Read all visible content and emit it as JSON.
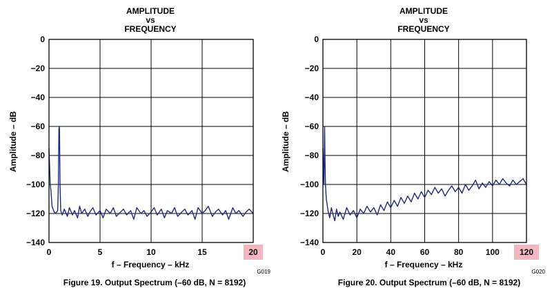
{
  "chart_data": [
    {
      "type": "line",
      "title": [
        "AMPLITUDE",
        "vs",
        "FREQUENCY"
      ],
      "xlabel": "f – Frequency – kHz",
      "ylabel": "Amplitude – dB",
      "xlim": [
        0,
        20
      ],
      "ylim": [
        -140,
        0
      ],
      "xticks": [
        0,
        5,
        10,
        15,
        20
      ],
      "xtick_labels": [
        "0",
        "5",
        "10",
        "15",
        "20"
      ],
      "yticks": [
        0,
        -20,
        -40,
        -60,
        -80,
        -100,
        -120,
        -140
      ],
      "ytick_labels": [
        "0",
        "−20",
        "−40",
        "−60",
        "−80",
        "−100",
        "−120",
        "−140"
      ],
      "highlighted_tick": "20",
      "grid": true,
      "code": "G019",
      "caption": "Figure 19. Output Spectrum (–60 dB, N = 8192)",
      "series": [
        {
          "x": [
            0,
            0.05,
            0.12,
            0.2,
            0.3,
            0.45,
            0.6,
            0.75,
            0.85,
            0.92,
            0.97,
            1.0,
            1.03,
            1.08,
            1.15,
            1.3,
            1.5,
            1.8,
            2.0,
            2.3,
            2.5,
            2.8,
            3.0,
            3.2,
            3.5,
            3.8,
            4.0,
            4.3,
            4.6,
            5.0,
            5.3,
            5.6,
            6.0,
            6.3,
            6.6,
            7.0,
            7.3,
            7.6,
            8.0,
            8.3,
            8.6,
            9.0,
            9.3,
            9.6,
            10.0,
            10.3,
            10.6,
            11.0,
            11.3,
            11.6,
            12.0,
            12.3,
            12.6,
            13.0,
            13.3,
            13.6,
            14.0,
            14.3,
            14.6,
            15.0,
            15.3,
            15.6,
            16.0,
            16.3,
            16.6,
            17.0,
            17.3,
            17.6,
            18.0,
            18.3,
            18.6,
            19.0,
            19.3,
            19.6,
            20.0
          ],
          "y": [
            -75,
            -85,
            -100,
            -105,
            -115,
            -118,
            -120,
            -119,
            -118,
            -100,
            -62,
            -60,
            -62,
            -100,
            -118,
            -121,
            -117,
            -122,
            -116,
            -121,
            -118,
            -123,
            -115,
            -120,
            -117,
            -122,
            -119,
            -116,
            -121,
            -118,
            -123,
            -117,
            -120,
            -116,
            -122,
            -119,
            -117,
            -121,
            -118,
            -124,
            -116,
            -120,
            -118,
            -122,
            -119,
            -116,
            -121,
            -117,
            -123,
            -118,
            -120,
            -116,
            -122,
            -119,
            -117,
            -121,
            -118,
            -124,
            -116,
            -120,
            -118,
            -115,
            -122,
            -119,
            -117,
            -121,
            -118,
            -124,
            -116,
            -120,
            -118,
            -122,
            -119,
            -117,
            -120
          ]
        }
      ]
    },
    {
      "type": "line",
      "title": [
        "AMPLITUDE",
        "vs",
        "FREQUENCY"
      ],
      "xlabel": "f – Frequency – kHz",
      "ylabel": "Amplitude – dB",
      "xlim": [
        0,
        120
      ],
      "ylim": [
        -140,
        0
      ],
      "xticks": [
        0,
        20,
        40,
        60,
        80,
        100,
        120
      ],
      "xtick_labels": [
        "0",
        "20",
        "40",
        "60",
        "80",
        "100",
        "120"
      ],
      "yticks": [
        0,
        -20,
        -40,
        -60,
        -80,
        -100,
        -120,
        -140
      ],
      "ytick_labels": [
        "0",
        "−20",
        "−40",
        "−60",
        "−80",
        "−100",
        "−120",
        "−140"
      ],
      "highlighted_tick": "120",
      "grid": true,
      "code": "G020",
      "caption": "Figure 20. Output Spectrum (–60 dB, N = 8192)",
      "series": [
        {
          "x": [
            0,
            0.3,
            0.6,
            0.8,
            1.0,
            1.2,
            1.5,
            2.0,
            3.0,
            4.0,
            5.0,
            6.0,
            7.0,
            8.0,
            9.0,
            10.0,
            12.0,
            14.0,
            16.0,
            18.0,
            20.0,
            22.0,
            24.0,
            26.0,
            28.0,
            30.0,
            32.0,
            34.0,
            36.0,
            38.0,
            40.0,
            42.0,
            44.0,
            46.0,
            48.0,
            50.0,
            52.0,
            54.0,
            56.0,
            58.0,
            60.0,
            62.0,
            64.0,
            66.0,
            68.0,
            70.0,
            72.0,
            74.0,
            76.0,
            78.0,
            80.0,
            82.0,
            84.0,
            86.0,
            88.0,
            90.0,
            92.0,
            94.0,
            96.0,
            98.0,
            100.0,
            102.0,
            104.0,
            106.0,
            108.0,
            110.0,
            112.0,
            114.0,
            116.0,
            118.0,
            120.0
          ],
          "y": [
            -75,
            -90,
            -100,
            -80,
            -60,
            -80,
            -100,
            -110,
            -118,
            -123,
            -116,
            -121,
            -125,
            -117,
            -122,
            -119,
            -124,
            -116,
            -121,
            -118,
            -123,
            -117,
            -120,
            -115,
            -119,
            -116,
            -121,
            -114,
            -118,
            -112,
            -116,
            -111,
            -115,
            -109,
            -113,
            -108,
            -112,
            -106,
            -110,
            -105,
            -109,
            -104,
            -107,
            -102,
            -106,
            -103,
            -108,
            -104,
            -101,
            -105,
            -102,
            -106,
            -100,
            -104,
            -101,
            -97,
            -103,
            -99,
            -102,
            -98,
            -101,
            -97,
            -100,
            -96,
            -99,
            -101,
            -97,
            -100,
            -98,
            -96,
            -100
          ]
        }
      ]
    }
  ]
}
